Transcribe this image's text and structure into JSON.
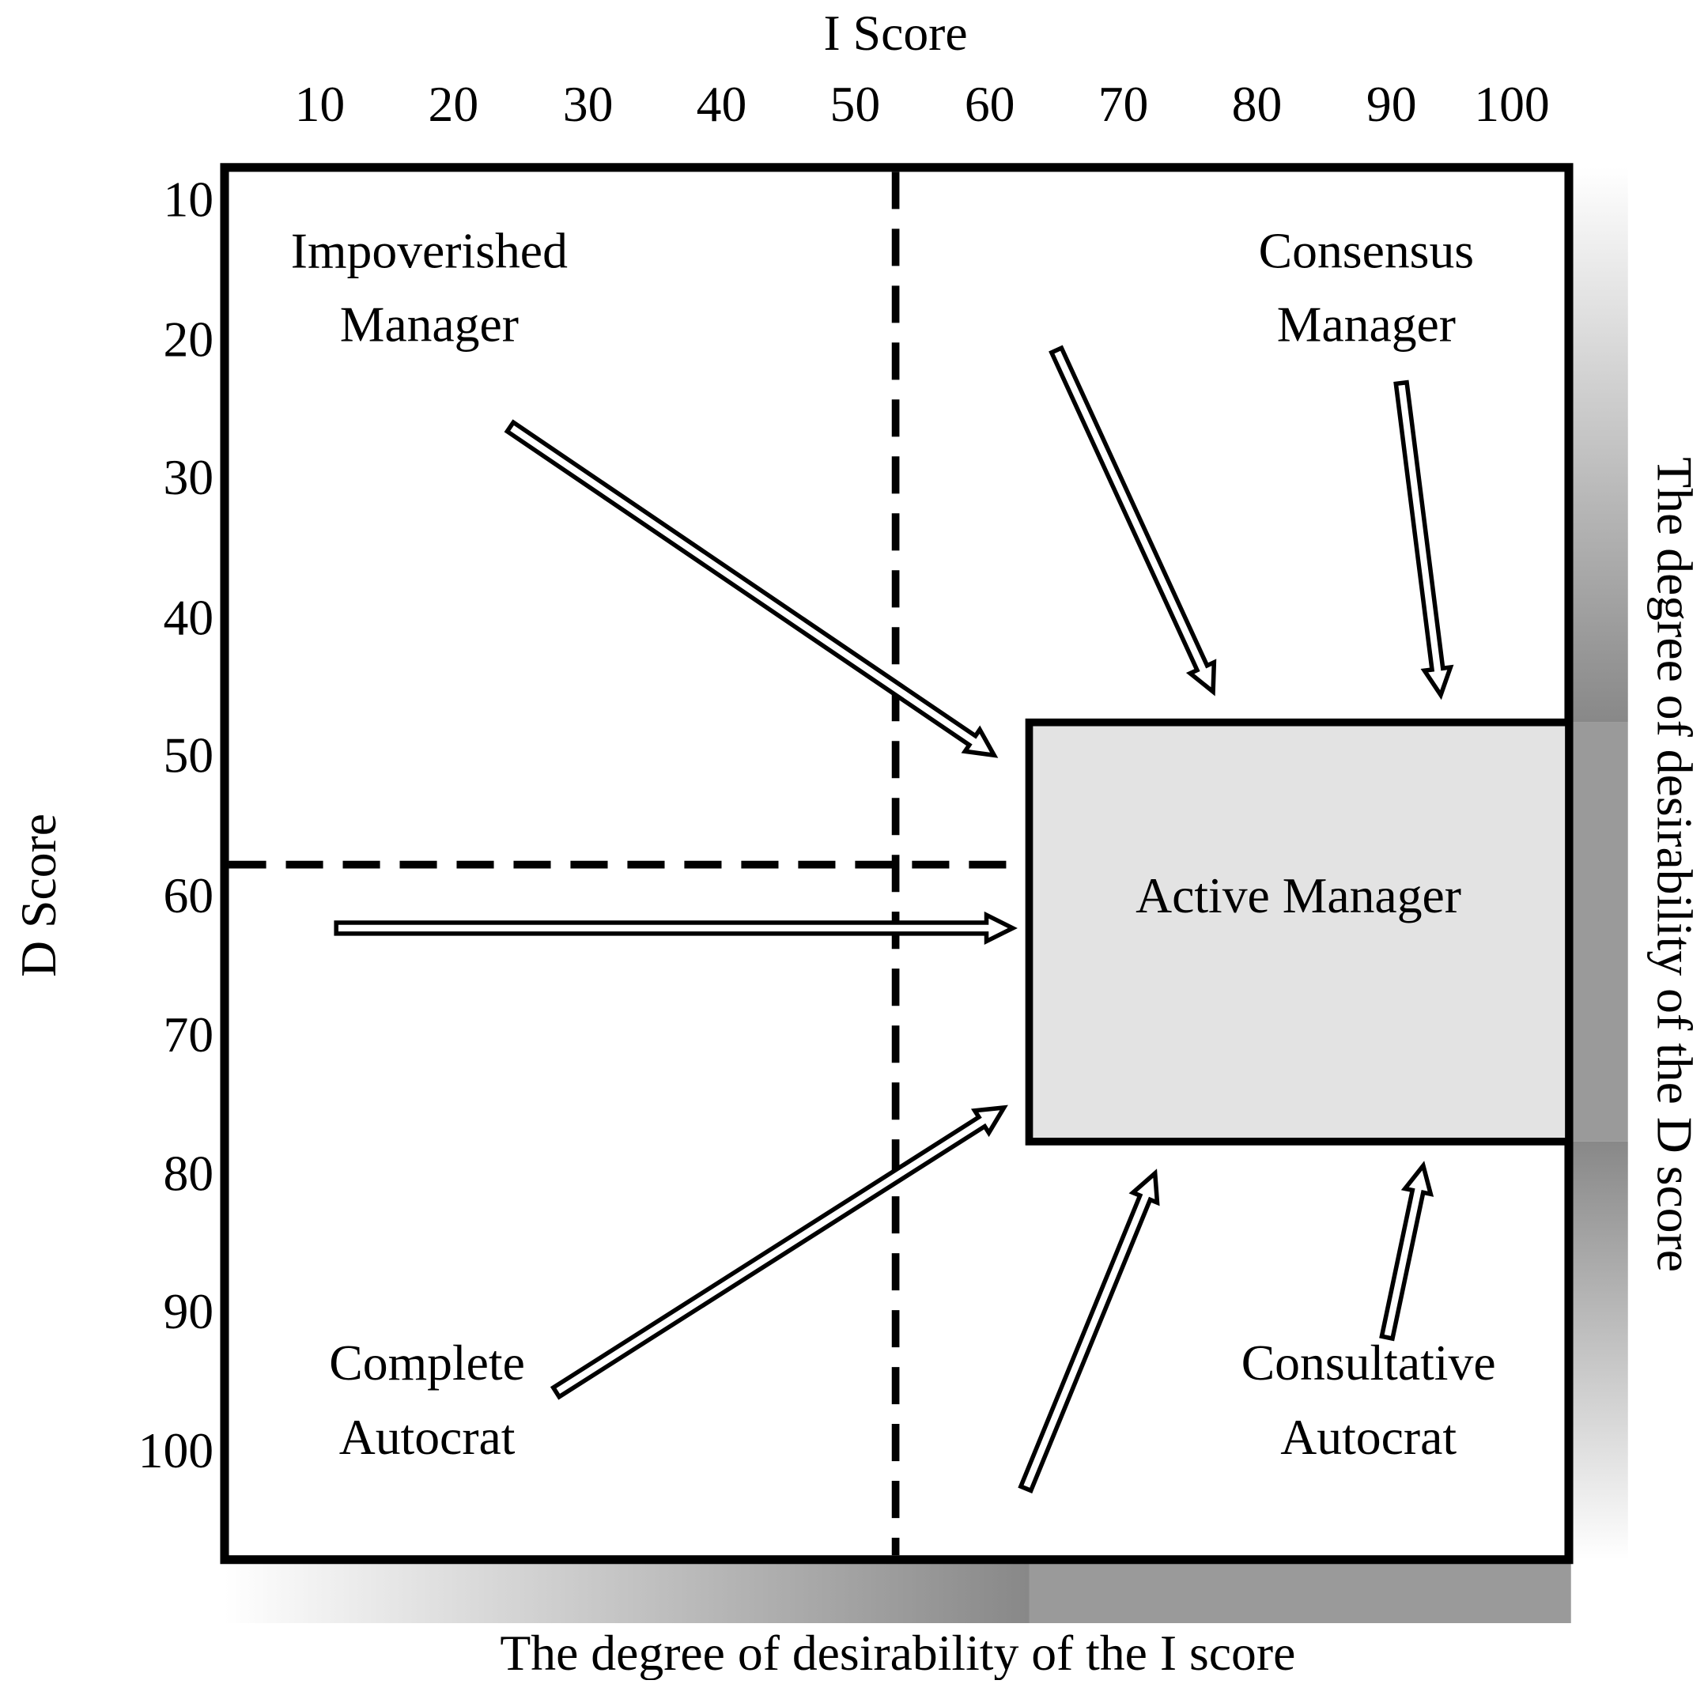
{
  "top_axis": {
    "title": "I Score",
    "ticks": [
      10,
      20,
      30,
      40,
      50,
      60,
      70,
      80,
      90,
      100
    ]
  },
  "left_axis": {
    "title": "D Score",
    "ticks": [
      10,
      20,
      30,
      40,
      50,
      60,
      70,
      80,
      90,
      100
    ]
  },
  "bottom_label": "The degree of desirability of the  I score",
  "right_label": "The degree of desirability of the  D score",
  "regions": {
    "top_left": [
      "Impoverished",
      "Manager"
    ],
    "top_right": [
      "Consensus",
      "Manager"
    ],
    "bottom_left": [
      "Complete",
      "Autocrat"
    ],
    "bottom_right": [
      "Consultative",
      "Autocrat"
    ],
    "center": "Active Manager"
  }
}
